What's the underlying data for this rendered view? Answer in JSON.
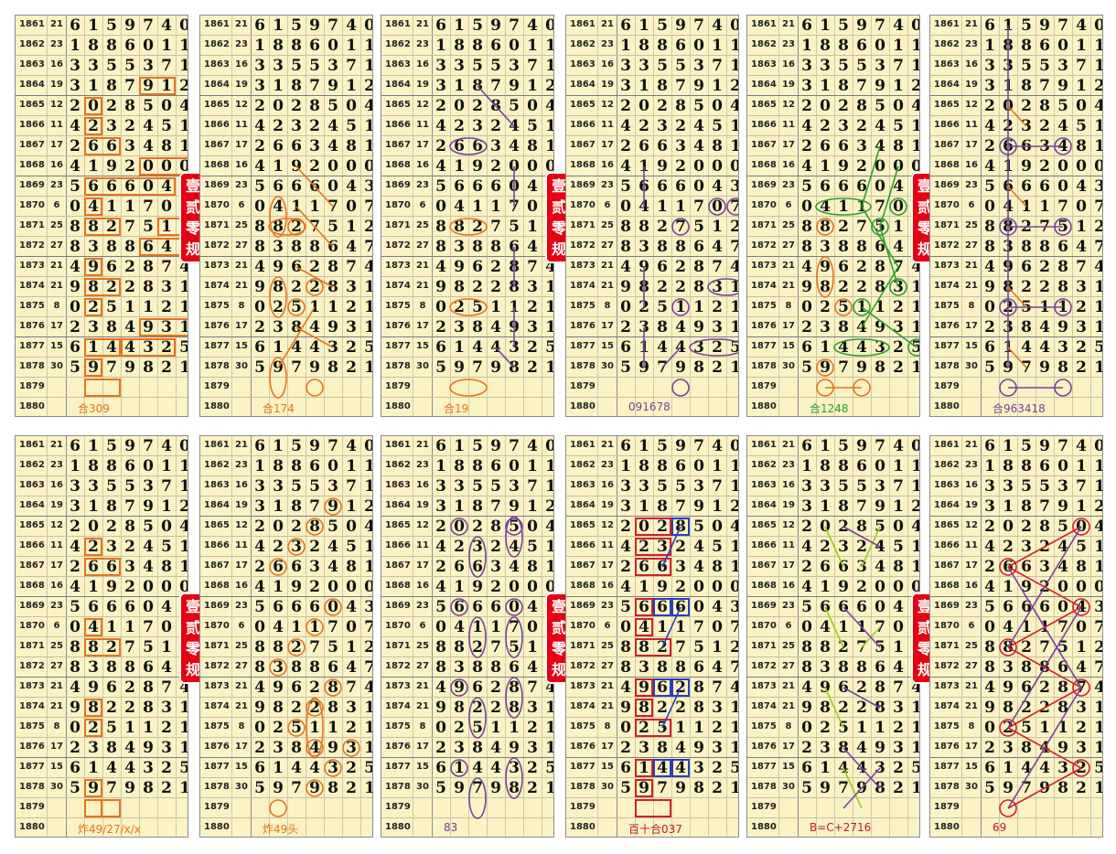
{
  "periods": [
    {
      "year": "1861",
      "sum": "21",
      "digits": "6159740"
    },
    {
      "year": "1862",
      "sum": "23",
      "digits": "1886011"
    },
    {
      "year": "1863",
      "sum": "16",
      "digits": "3355371"
    },
    {
      "year": "1864",
      "sum": "19",
      "digits": "3187912"
    },
    {
      "year": "1865",
      "sum": "12",
      "digits": "2028504"
    },
    {
      "year": "1866",
      "sum": "11",
      "digits": "4232451"
    },
    {
      "year": "1867",
      "sum": "17",
      "digits": "2663481"
    },
    {
      "year": "1868",
      "sum": "16",
      "digits": "4192000"
    },
    {
      "year": "1869",
      "sum": "23",
      "digits": "5666043"
    },
    {
      "year": "1870",
      "sum": "6",
      "digits": "0411707"
    },
    {
      "year": "1871",
      "sum": "25",
      "digits": "8827512"
    },
    {
      "year": "1872",
      "sum": "27",
      "digits": "8388647"
    },
    {
      "year": "1873",
      "sum": "21",
      "digits": "4962874"
    },
    {
      "year": "1874",
      "sum": "21",
      "digits": "9822831"
    },
    {
      "year": "1875",
      "sum": "8",
      "digits": "0251121"
    },
    {
      "year": "1876",
      "sum": "17",
      "digits": "2384931"
    },
    {
      "year": "1877",
      "sum": "15",
      "digits": "6144325"
    },
    {
      "year": "1878",
      "sum": "30",
      "digits": "5979821"
    },
    {
      "year": "1879",
      "sum": "",
      "digits": ""
    },
    {
      "year": "1880",
      "sum": "",
      "digits": ""
    }
  ],
  "stamp_text": [
    "壹",
    "贰",
    "零",
    "规"
  ],
  "panels": [
    {
      "caption": "合309",
      "caption_color": "#e8731a"
    },
    {
      "caption": "合174",
      "caption_color": "#e8731a"
    },
    {
      "caption": "合19",
      "caption_color": "#e8731a"
    },
    {
      "caption": "091678",
      "caption_color": "#7b3fa0"
    },
    {
      "caption": "合1248",
      "caption_color": "#2aa02a"
    },
    {
      "caption": "合963418",
      "caption_color": "#7b3fa0"
    },
    {
      "caption": "炸49/27/x/x",
      "caption_color": "#e8731a"
    },
    {
      "caption": "炸49头",
      "caption_color": "#e8731a"
    },
    {
      "caption": "83",
      "caption_color": "#7b3fa0"
    },
    {
      "caption": "百十合037",
      "caption_color": "#c0182a"
    },
    {
      "caption": "B=C+2716",
      "caption_color": "#c0182a"
    },
    {
      "caption": "69",
      "caption_color": "#c0182a"
    }
  ],
  "colors": {
    "paper": "#fbf3c4",
    "orange": "#e8731a",
    "purple": "#7b3fa0",
    "green": "#2aa02a",
    "red": "#d0202a",
    "blue": "#2a3fc0",
    "stamp": "#e60012"
  }
}
